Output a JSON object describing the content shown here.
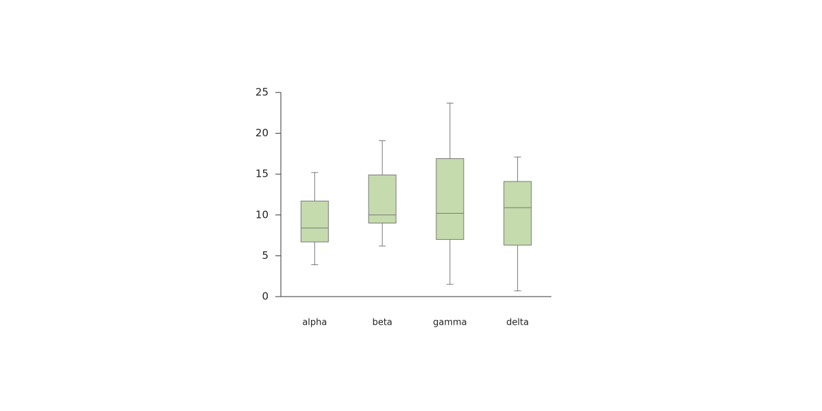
{
  "chart_data": {
    "type": "box",
    "categories": [
      "alpha",
      "beta",
      "gamma",
      "delta"
    ],
    "min": [
      3.9,
      6.2,
      1.5,
      0.7
    ],
    "q1": [
      6.7,
      9.0,
      7.0,
      6.3
    ],
    "median": [
      8.4,
      10.0,
      10.2,
      10.9
    ],
    "q3": [
      11.7,
      14.9,
      16.9,
      14.1
    ],
    "max": [
      15.2,
      19.1,
      23.7,
      17.1
    ],
    "color": "#c5dbad",
    "ylim": [
      0,
      25
    ],
    "yticks": [
      0,
      5,
      10,
      15,
      20,
      25
    ],
    "grid": false
  }
}
